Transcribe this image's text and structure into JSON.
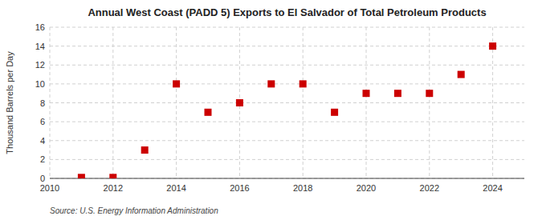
{
  "chart_data": {
    "type": "scatter",
    "title": "Annual West Coast (PADD 5) Exports to El Salvador of Total Petroleum Products",
    "y_label": "Thousand Barrels per Day",
    "annotations": [
      "Source: U.S. Energy Information Administration"
    ],
    "x": [
      2011,
      2012,
      2013,
      2014,
      2015,
      2016,
      2017,
      2018,
      2019,
      2020,
      2021,
      2022,
      2023,
      2024
    ],
    "values": [
      0.1,
      0.1,
      3,
      10,
      7,
      8,
      10,
      10,
      7,
      9,
      9,
      9,
      11,
      14
    ],
    "color": "#cc0000",
    "marker": "square",
    "xlim": [
      2010,
      2025
    ],
    "ylim": [
      0,
      16
    ],
    "xticks": [
      2010,
      2012,
      2014,
      2016,
      2018,
      2020,
      2022,
      2024
    ],
    "yticks": [
      0,
      2,
      4,
      6,
      8,
      10,
      12,
      14,
      16
    ],
    "grid": true
  }
}
